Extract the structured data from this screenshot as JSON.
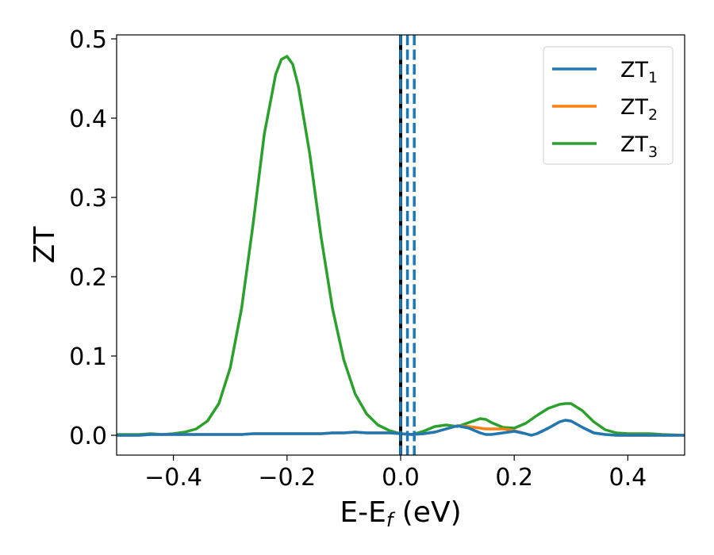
{
  "chart_data": {
    "type": "line",
    "title": "",
    "xlabel": "E-E",
    "xlabel_sub": "f",
    "xlabel_unit": " (eV)",
    "ylabel": "ZT",
    "xlim": [
      -0.5,
      0.5
    ],
    "ylim": [
      -0.025,
      0.505
    ],
    "x_ticks": [
      -0.4,
      -0.2,
      0.0,
      0.2,
      0.4
    ],
    "x_tick_labels": [
      "−0.4",
      "−0.2",
      "0.0",
      "0.2",
      "0.4"
    ],
    "y_ticks": [
      0.0,
      0.1,
      0.2,
      0.3,
      0.4,
      0.5
    ],
    "y_tick_labels": [
      "0.0",
      "0.1",
      "0.2",
      "0.3",
      "0.4",
      "0.5"
    ],
    "grid": false,
    "legend_position": "top-right",
    "vlines": [
      {
        "x": 0.0,
        "style": "solid",
        "color": "#000000"
      },
      {
        "x": 0.0,
        "style": "dashed",
        "color": "#1f77b4"
      },
      {
        "x": 0.012,
        "style": "dashed",
        "color": "#1f77b4"
      },
      {
        "x": 0.024,
        "style": "dashed",
        "color": "#1f77b4"
      }
    ],
    "x": [
      -0.5,
      -0.46,
      -0.44,
      -0.42,
      -0.4,
      -0.38,
      -0.36,
      -0.34,
      -0.32,
      -0.3,
      -0.28,
      -0.26,
      -0.24,
      -0.22,
      -0.21,
      -0.2,
      -0.19,
      -0.18,
      -0.16,
      -0.14,
      -0.12,
      -0.1,
      -0.08,
      -0.06,
      -0.04,
      -0.02,
      0.0,
      0.02,
      0.04,
      0.06,
      0.08,
      0.1,
      0.12,
      0.14,
      0.15,
      0.16,
      0.18,
      0.2,
      0.22,
      0.23,
      0.24,
      0.26,
      0.28,
      0.29,
      0.3,
      0.32,
      0.34,
      0.36,
      0.38,
      0.4,
      0.42,
      0.44,
      0.46,
      0.5
    ],
    "series": [
      {
        "name": "ZT",
        "name_sub": "1",
        "color": "#1f77b4",
        "values": [
          0.0,
          0.0,
          0.001,
          0.001,
          0.001,
          0.001,
          0.001,
          0.001,
          0.001,
          0.001,
          0.001,
          0.002,
          0.002,
          0.002,
          0.002,
          0.002,
          0.002,
          0.002,
          0.002,
          0.002,
          0.003,
          0.003,
          0.004,
          0.003,
          0.003,
          0.003,
          0.002,
          0.001,
          0.002,
          0.004,
          0.008,
          0.012,
          0.009,
          0.003,
          0.001,
          0.001,
          0.003,
          0.005,
          0.002,
          0.0,
          0.002,
          0.009,
          0.017,
          0.019,
          0.018,
          0.01,
          0.003,
          0.001,
          0.0,
          0.0,
          0.0,
          0.0,
          0.0,
          0.0
        ]
      },
      {
        "name": "ZT",
        "name_sub": "2",
        "color": "#ff7f0e",
        "values": [
          0.0,
          0.0,
          0.001,
          0.001,
          0.001,
          0.001,
          0.001,
          0.001,
          0.001,
          0.001,
          0.001,
          0.002,
          0.002,
          0.002,
          0.002,
          0.002,
          0.002,
          0.002,
          0.002,
          0.002,
          0.003,
          0.003,
          0.004,
          0.003,
          0.003,
          0.003,
          0.002,
          0.001,
          0.002,
          0.004,
          0.008,
          0.012,
          0.011,
          0.009,
          0.008,
          0.008,
          0.008,
          0.006,
          0.002,
          0.0,
          0.002,
          0.009,
          0.017,
          0.019,
          0.018,
          0.01,
          0.003,
          0.001,
          0.0,
          0.0,
          0.0,
          0.0,
          0.0,
          0.0
        ]
      },
      {
        "name": "ZT",
        "name_sub": "3",
        "color": "#2ca02c",
        "values": [
          0.001,
          0.001,
          0.002,
          0.001,
          0.002,
          0.004,
          0.008,
          0.018,
          0.04,
          0.085,
          0.16,
          0.265,
          0.38,
          0.455,
          0.474,
          0.478,
          0.468,
          0.44,
          0.355,
          0.25,
          0.16,
          0.095,
          0.052,
          0.027,
          0.013,
          0.006,
          0.002,
          0.001,
          0.005,
          0.011,
          0.013,
          0.011,
          0.016,
          0.021,
          0.02,
          0.016,
          0.01,
          0.009,
          0.015,
          0.02,
          0.025,
          0.034,
          0.039,
          0.04,
          0.04,
          0.031,
          0.017,
          0.007,
          0.003,
          0.002,
          0.002,
          0.002,
          0.001,
          0.0
        ]
      }
    ]
  }
}
